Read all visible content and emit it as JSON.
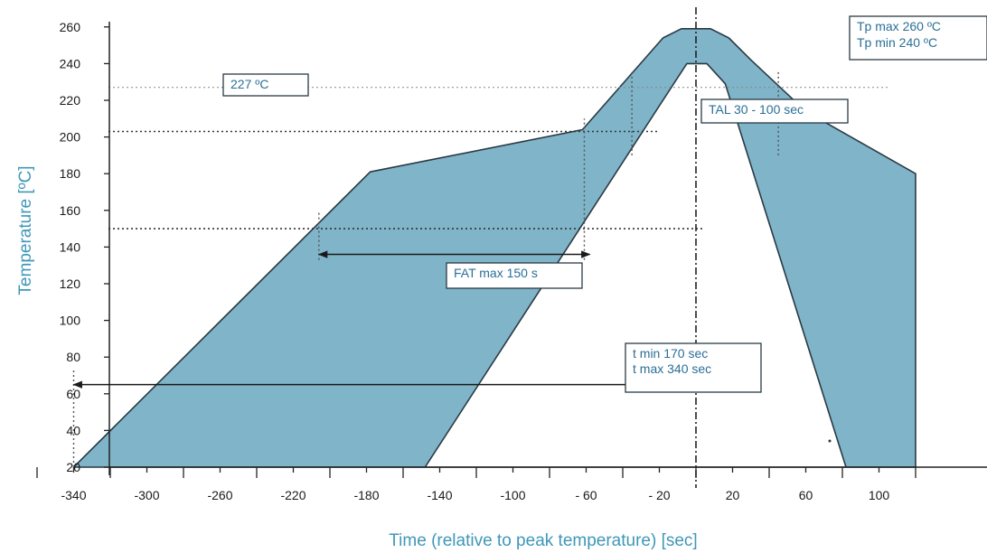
{
  "chart_data": {
    "type": "area",
    "title": "",
    "xlabel": "Time (relative to peak temperature) [sec]",
    "ylabel": "Temperature [ºC]",
    "xlim": [
      -360,
      120
    ],
    "ylim": [
      20,
      260
    ],
    "x_ticks": [
      -340,
      -300,
      -260,
      -220,
      -180,
      -140,
      -100,
      -60,
      -20,
      20,
      60,
      100
    ],
    "x_tick_labels": [
      "-340",
      "-300",
      "-260",
      "-220",
      "-180",
      "-140",
      "-100",
      "- 60",
      "- 20",
      "20",
      "60",
      "100"
    ],
    "y_ticks": [
      20,
      40,
      60,
      80,
      100,
      120,
      140,
      160,
      180,
      200,
      220,
      240,
      260
    ],
    "grid": false,
    "legend": "none",
    "fill_color": "#7fb4c9",
    "edge_color": "#2a3a44",
    "outer_boundary": [
      [
        -340,
        20
      ],
      [
        -178,
        181
      ],
      [
        -62,
        204
      ],
      [
        -18,
        254
      ],
      [
        -8,
        259
      ],
      [
        8,
        259
      ],
      [
        18,
        254
      ],
      [
        30,
        242
      ],
      [
        60,
        214
      ],
      [
        120,
        180
      ],
      [
        120,
        20
      ],
      [
        82,
        20
      ]
    ],
    "inner_boundary": [
      [
        -148,
        20
      ],
      [
        -20,
        217
      ],
      [
        -5,
        240
      ],
      [
        6,
        240
      ],
      [
        16,
        229
      ],
      [
        82,
        20
      ]
    ],
    "reference_lines": [
      {
        "axis": "y",
        "value": 227,
        "label": "227 ºC"
      },
      {
        "axis": "y",
        "value": 203
      },
      {
        "axis": "y",
        "value": 150
      },
      {
        "axis": "x",
        "value": 0
      }
    ],
    "annotations": [
      {
        "id": "tp",
        "lines": [
          "Tp max 260 ºC",
          "Tp min  240 ºC"
        ]
      },
      {
        "id": "tal",
        "lines": [
          "TAL 30 - 100 sec"
        ]
      },
      {
        "id": "fat",
        "lines": [
          "FAT max 150 s"
        ],
        "span": [
          -206,
          -58
        ],
        "y": 136
      },
      {
        "id": "t",
        "lines": [
          "t min 170 sec",
          "t max 340 sec"
        ],
        "span": [
          -340,
          0
        ],
        "y": 65
      }
    ]
  }
}
